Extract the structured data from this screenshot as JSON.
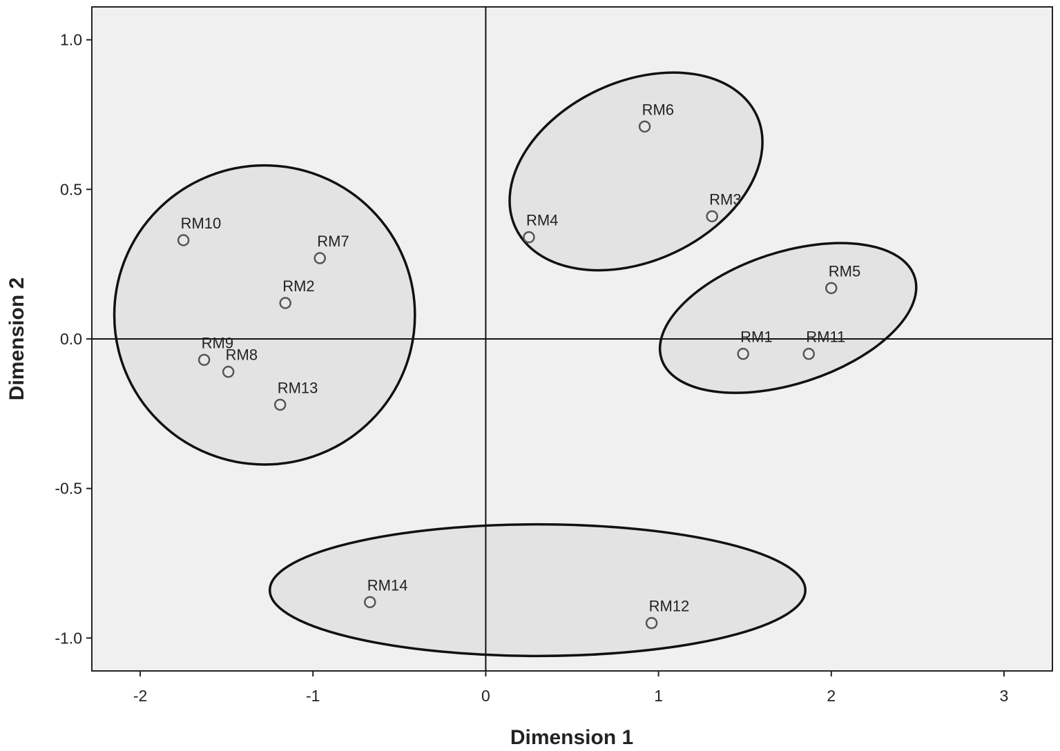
{
  "chart_data": {
    "type": "scatter",
    "xlabel": "Dimension 1",
    "ylabel": "Dimension 2",
    "xlim": [
      -2.28,
      3.28
    ],
    "ylim": [
      -1.11,
      1.11
    ],
    "xticks": [
      -2,
      -1,
      0,
      1,
      2,
      3
    ],
    "yticks": [
      1.0,
      0.5,
      0.0,
      -0.5,
      -1.0
    ],
    "xtick_labels": [
      "-2",
      "-1",
      "0",
      "1",
      "2",
      "3"
    ],
    "ytick_labels": [
      "1.0",
      "0.5",
      "0.0",
      "-0.5",
      "-1.0"
    ],
    "grid": false,
    "reference_lines": {
      "x": 0,
      "y": 0
    },
    "points": [
      {
        "label": "RM1",
        "x": 1.49,
        "y": -0.05
      },
      {
        "label": "RM2",
        "x": -1.16,
        "y": 0.12
      },
      {
        "label": "RM3",
        "x": 1.31,
        "y": 0.41
      },
      {
        "label": "RM4",
        "x": 0.25,
        "y": 0.34
      },
      {
        "label": "RM5",
        "x": 2.0,
        "y": 0.17
      },
      {
        "label": "RM6",
        "x": 0.92,
        "y": 0.71
      },
      {
        "label": "RM7",
        "x": -0.96,
        "y": 0.27
      },
      {
        "label": "RM8",
        "x": -1.49,
        "y": -0.11
      },
      {
        "label": "RM9",
        "x": -1.63,
        "y": -0.07
      },
      {
        "label": "RM10",
        "x": -1.75,
        "y": 0.33
      },
      {
        "label": "RM11",
        "x": 1.87,
        "y": -0.05
      },
      {
        "label": "RM12",
        "x": 0.96,
        "y": -0.95
      },
      {
        "label": "RM13",
        "x": -1.19,
        "y": -0.22
      },
      {
        "label": "RM14",
        "x": -0.67,
        "y": -0.88
      }
    ],
    "clusters": [
      {
        "members": [
          "RM10",
          "RM7",
          "RM2",
          "RM9",
          "RM8",
          "RM13"
        ],
        "cx": -1.28,
        "cy": 0.08,
        "rx": 0.87,
        "ry": 0.5,
        "angle": 0
      },
      {
        "members": [
          "RM6",
          "RM3",
          "RM4"
        ],
        "cx": 0.87,
        "cy": 0.56,
        "rx": 0.77,
        "ry": 0.3,
        "angle": 25
      },
      {
        "members": [
          "RM5",
          "RM1",
          "RM11"
        ],
        "cx": 1.75,
        "cy": 0.07,
        "rx": 0.77,
        "ry": 0.22,
        "angle": 18
      },
      {
        "members": [
          "RM14",
          "RM12"
        ],
        "cx": 0.3,
        "cy": -0.84,
        "rx": 1.55,
        "ry": 0.22,
        "angle": 0
      }
    ],
    "colors": {
      "plot_background": "#f0f0f0",
      "cluster_fill": "#e3e3e3",
      "stroke": "#111111",
      "marker_stroke": "#555555"
    }
  }
}
